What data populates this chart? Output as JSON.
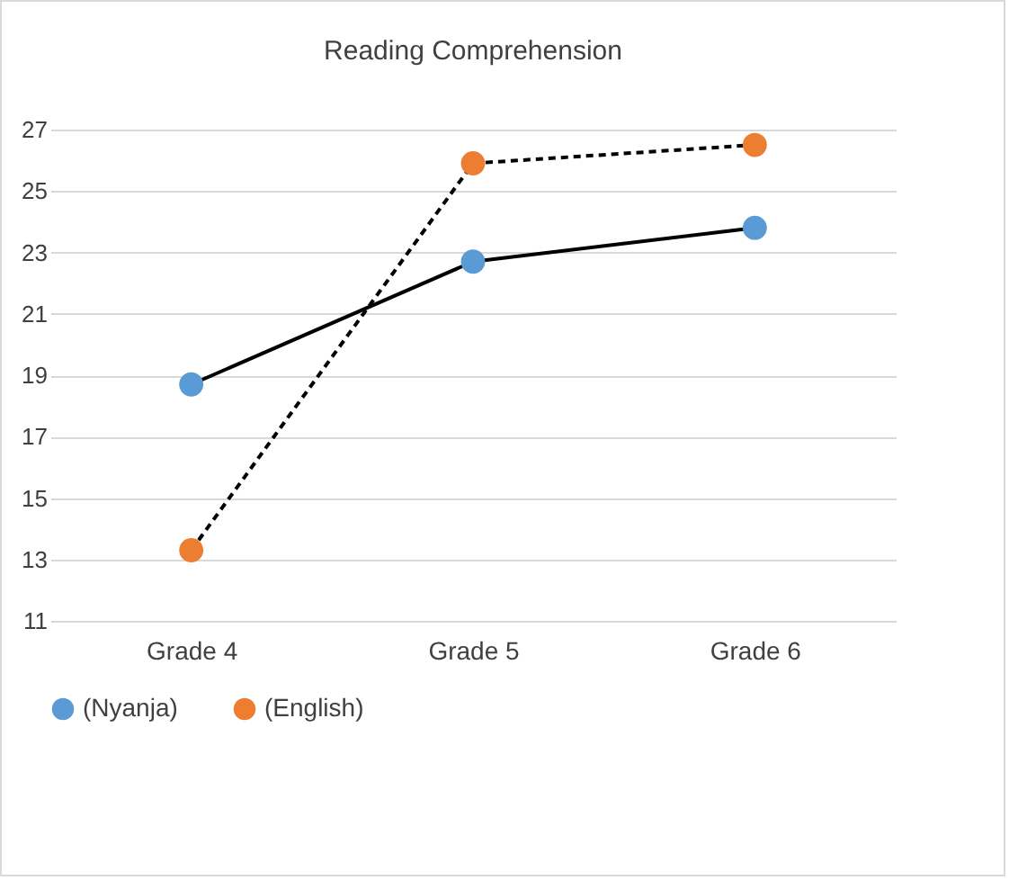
{
  "chart_data": {
    "type": "line",
    "title": "Reading Comprehension",
    "categories": [
      "Grade 4",
      "Grade 5",
      "Grade 6"
    ],
    "series": [
      {
        "name": "(Nyanja)",
        "color": "#5b9bd5",
        "line_style": "solid",
        "values": [
          18.7,
          22.7,
          23.8
        ]
      },
      {
        "name": "(English)",
        "color": "#ed7d31",
        "line_style": "dashed",
        "values": [
          13.3,
          25.9,
          26.5
        ]
      }
    ],
    "ylim": [
      11,
      27
    ],
    "yticks": [
      11,
      13,
      15,
      17,
      19,
      21,
      23,
      25,
      27
    ],
    "grid": "y",
    "legend": "bottom",
    "marker": "circle"
  }
}
